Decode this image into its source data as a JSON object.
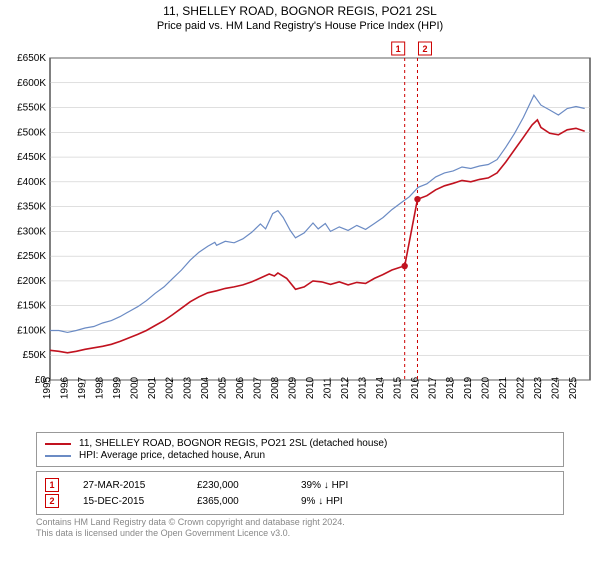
{
  "title": "11, SHELLEY ROAD, BOGNOR REGIS, PO21 2SL",
  "subtitle": "Price paid vs. HM Land Registry's House Price Index (HPI)",
  "chart": {
    "type": "line",
    "background_color": "#ffffff",
    "grid_color": "#bfbfbf",
    "axis_color": "#000000",
    "xlim": [
      1995,
      2025.8
    ],
    "ylim": [
      0,
      650000
    ],
    "ytick_step": 50000,
    "y_tick_labels": [
      "£0",
      "£50K",
      "£100K",
      "£150K",
      "£200K",
      "£250K",
      "£300K",
      "£350K",
      "£400K",
      "£450K",
      "£500K",
      "£550K",
      "£600K",
      "£650K"
    ],
    "x_years": [
      1995,
      1996,
      1997,
      1998,
      1999,
      2000,
      2001,
      2002,
      2003,
      2004,
      2005,
      2006,
      2007,
      2008,
      2009,
      2010,
      2011,
      2012,
      2013,
      2014,
      2015,
      2016,
      2017,
      2018,
      2019,
      2020,
      2021,
      2022,
      2023,
      2024,
      2025
    ],
    "series": [
      {
        "key": "hpi",
        "label": "HPI: Average price, detached house, Arun",
        "color": "#6b8bc4",
        "line_width": 1.2,
        "points": [
          [
            1995,
            100000
          ],
          [
            1995.5,
            100000
          ],
          [
            1996,
            96000
          ],
          [
            1996.5,
            100000
          ],
          [
            1997,
            105000
          ],
          [
            1997.5,
            108000
          ],
          [
            1998,
            115000
          ],
          [
            1998.5,
            120000
          ],
          [
            1999,
            128000
          ],
          [
            1999.5,
            138000
          ],
          [
            2000,
            148000
          ],
          [
            2000.5,
            160000
          ],
          [
            2001,
            175000
          ],
          [
            2001.5,
            188000
          ],
          [
            2002,
            205000
          ],
          [
            2002.5,
            222000
          ],
          [
            2003,
            242000
          ],
          [
            2003.5,
            258000
          ],
          [
            2004,
            270000
          ],
          [
            2004.4,
            278000
          ],
          [
            2004.5,
            272000
          ],
          [
            2005,
            280000
          ],
          [
            2005.5,
            277000
          ],
          [
            2006,
            285000
          ],
          [
            2006.5,
            298000
          ],
          [
            2007,
            315000
          ],
          [
            2007.3,
            305000
          ],
          [
            2007.7,
            336000
          ],
          [
            2008,
            342000
          ],
          [
            2008.3,
            328000
          ],
          [
            2008.7,
            302000
          ],
          [
            2009,
            287000
          ],
          [
            2009.5,
            297000
          ],
          [
            2010,
            317000
          ],
          [
            2010.3,
            305000
          ],
          [
            2010.7,
            316000
          ],
          [
            2011,
            300000
          ],
          [
            2011.5,
            309000
          ],
          [
            2012,
            302000
          ],
          [
            2012.5,
            312000
          ],
          [
            2013,
            304000
          ],
          [
            2013.5,
            316000
          ],
          [
            2014,
            328000
          ],
          [
            2014.5,
            344000
          ],
          [
            2015,
            357000
          ],
          [
            2015.5,
            370000
          ],
          [
            2016,
            389000
          ],
          [
            2016.5,
            396000
          ],
          [
            2017,
            410000
          ],
          [
            2017.5,
            418000
          ],
          [
            2018,
            422000
          ],
          [
            2018.5,
            430000
          ],
          [
            2019,
            427000
          ],
          [
            2019.5,
            432000
          ],
          [
            2020,
            435000
          ],
          [
            2020.5,
            445000
          ],
          [
            2021,
            470000
          ],
          [
            2021.5,
            498000
          ],
          [
            2022,
            530000
          ],
          [
            2022.6,
            575000
          ],
          [
            2023,
            555000
          ],
          [
            2023.5,
            545000
          ],
          [
            2024,
            535000
          ],
          [
            2024.5,
            548000
          ],
          [
            2025,
            552000
          ],
          [
            2025.5,
            548000
          ]
        ]
      },
      {
        "key": "paid",
        "label": "11, SHELLEY ROAD, BOGNOR REGIS, PO21 2SL (detached house)",
        "color": "#c1121f",
        "line_width": 1.6,
        "points": [
          [
            1995,
            60000
          ],
          [
            1995.5,
            58000
          ],
          [
            1996,
            55000
          ],
          [
            1996.5,
            58000
          ],
          [
            1997,
            62000
          ],
          [
            1997.5,
            65000
          ],
          [
            1998,
            68000
          ],
          [
            1998.5,
            72000
          ],
          [
            1999,
            78000
          ],
          [
            1999.5,
            85000
          ],
          [
            2000,
            92000
          ],
          [
            2000.5,
            100000
          ],
          [
            2001,
            110000
          ],
          [
            2001.5,
            120000
          ],
          [
            2002,
            132000
          ],
          [
            2002.5,
            145000
          ],
          [
            2003,
            158000
          ],
          [
            2003.5,
            168000
          ],
          [
            2004,
            176000
          ],
          [
            2004.5,
            180000
          ],
          [
            2005,
            185000
          ],
          [
            2005.5,
            188000
          ],
          [
            2006,
            192000
          ],
          [
            2006.5,
            198000
          ],
          [
            2007,
            206000
          ],
          [
            2007.5,
            214000
          ],
          [
            2007.8,
            210000
          ],
          [
            2008,
            216000
          ],
          [
            2008.5,
            205000
          ],
          [
            2009,
            183000
          ],
          [
            2009.5,
            188000
          ],
          [
            2010,
            200000
          ],
          [
            2010.5,
            198000
          ],
          [
            2011,
            193000
          ],
          [
            2011.5,
            198000
          ],
          [
            2012,
            192000
          ],
          [
            2012.5,
            197000
          ],
          [
            2013,
            195000
          ],
          [
            2013.5,
            205000
          ],
          [
            2014,
            213000
          ],
          [
            2014.5,
            222000
          ],
          [
            2015,
            228000
          ],
          [
            2015.23,
            230000
          ]
        ],
        "event_dots": [
          {
            "x": 2015.23,
            "y": 230000
          },
          {
            "x": 2015.96,
            "y": 365000
          }
        ],
        "points2": [
          [
            2015.96,
            365000
          ],
          [
            2016.5,
            372000
          ],
          [
            2017,
            384000
          ],
          [
            2017.5,
            392000
          ],
          [
            2018,
            397000
          ],
          [
            2018.5,
            403000
          ],
          [
            2019,
            400000
          ],
          [
            2019.5,
            405000
          ],
          [
            2020,
            408000
          ],
          [
            2020.5,
            418000
          ],
          [
            2021,
            440000
          ],
          [
            2021.5,
            465000
          ],
          [
            2022,
            490000
          ],
          [
            2022.5,
            515000
          ],
          [
            2022.8,
            525000
          ],
          [
            2023,
            510000
          ],
          [
            2023.5,
            498000
          ],
          [
            2024,
            495000
          ],
          [
            2024.5,
            505000
          ],
          [
            2025,
            508000
          ],
          [
            2025.5,
            502000
          ]
        ]
      }
    ],
    "event_markers": [
      {
        "id": "1",
        "x": 2015.23
      },
      {
        "id": "2",
        "x": 2015.96
      }
    ]
  },
  "legend": {
    "items": [
      {
        "color": "#c1121f",
        "label": "11, SHELLEY ROAD, BOGNOR REGIS, PO21 2SL (detached house)"
      },
      {
        "color": "#6b8bc4",
        "label": "HPI: Average price, detached house, Arun"
      }
    ]
  },
  "events": [
    {
      "id": "1",
      "date": "27-MAR-2015",
      "price": "£230,000",
      "pct": "39% ↓ HPI"
    },
    {
      "id": "2",
      "date": "15-DEC-2015",
      "price": "£365,000",
      "pct": "9% ↓ HPI"
    }
  ],
  "credits": {
    "line1": "Contains HM Land Registry data © Crown copyright and database right 2024.",
    "line2": "This data is licensed under the Open Government Licence v3.0."
  }
}
